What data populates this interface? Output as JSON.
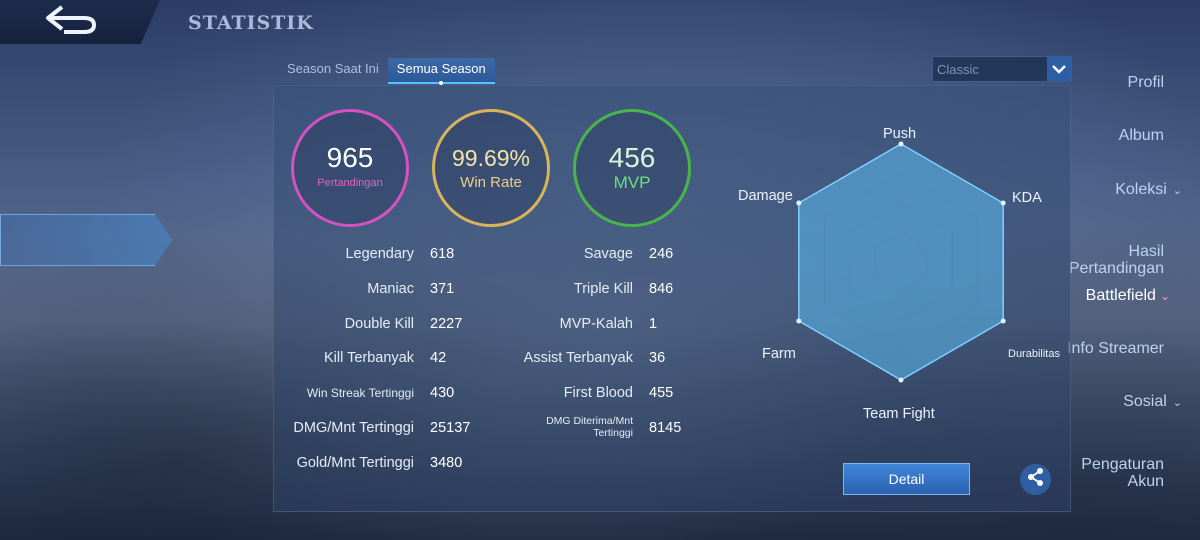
{
  "header": {
    "title": "STATISTIK"
  },
  "sidebar": {
    "items": [
      {
        "label": "Profil"
      },
      {
        "label": "Album"
      },
      {
        "label": "Koleksi"
      },
      {
        "label": "Hasil\nPertandingan"
      },
      {
        "label": "Battlefield"
      },
      {
        "label": "Info Streamer"
      },
      {
        "label": "Sosial"
      },
      {
        "label": "Pengaturan\nAkun"
      }
    ],
    "active": "Battlefield"
  },
  "tabs": [
    {
      "label": "Season Saat Ini",
      "active": false
    },
    {
      "label": "Semua Season",
      "active": true
    }
  ],
  "mode_select": {
    "value": "Classic"
  },
  "summary": {
    "matches": {
      "value": "965",
      "label": "Pertandingan"
    },
    "win_rate": {
      "value": "99.69%",
      "label": "Win Rate"
    },
    "mvp": {
      "value": "456",
      "label": "MVP"
    }
  },
  "stats_left": [
    {
      "label": "Legendary",
      "value": "618"
    },
    {
      "label": "Maniac",
      "value": "371"
    },
    {
      "label": "Double Kill",
      "value": "2227"
    },
    {
      "label": "Kill Terbanyak",
      "value": "42"
    },
    {
      "label": "Win Streak Tertinggi",
      "value": "430"
    },
    {
      "label": "DMG/Mnt Tertinggi",
      "value": "25137"
    },
    {
      "label": "Gold/Mnt Tertinggi",
      "value": "3480"
    }
  ],
  "stats_right": [
    {
      "label": "Savage",
      "value": "246"
    },
    {
      "label": "Triple Kill",
      "value": "846"
    },
    {
      "label": "MVP-Kalah",
      "value": "1"
    },
    {
      "label": "Assist Terbanyak",
      "value": "36"
    },
    {
      "label": "First Blood",
      "value": "455"
    },
    {
      "label": "DMG Diterima/Mnt Tertinggi",
      "value": "8145"
    }
  ],
  "radar": {
    "axes": [
      "Push",
      "KDA",
      "Durabilitas",
      "Team Fight",
      "Farm",
      "Damage"
    ],
    "values": [
      1.0,
      1.0,
      1.0,
      1.0,
      1.0,
      1.0
    ],
    "fill_color": "#5ab3e6"
  },
  "buttons": {
    "detail": "Detail"
  },
  "icons": {
    "back": "back-arrow-icon",
    "share": "share-icon",
    "dropdown": "chevron-down-icon"
  }
}
